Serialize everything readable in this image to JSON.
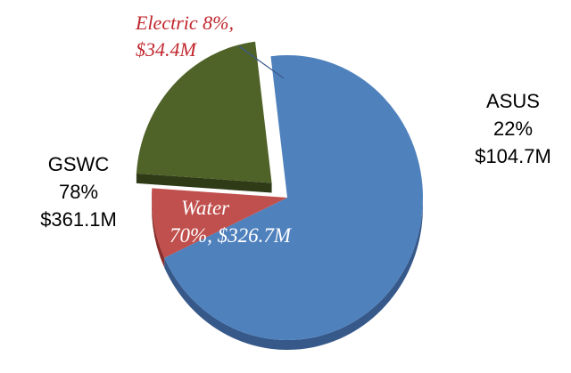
{
  "chart_data": {
    "type": "pie",
    "title": "",
    "slices": [
      {
        "label": "Water",
        "value": 70,
        "amount": "$326.7M",
        "color": "#4f81bd",
        "side_color": "#36598a"
      },
      {
        "label": "Electric",
        "value": 8,
        "amount": "$34.4M",
        "color": "#c0504d",
        "side_color": "#8a2e2c"
      },
      {
        "label": "ASUS",
        "value": 22,
        "amount": "$104.7M",
        "color": "#4f6228",
        "side_color": "#2f3b17",
        "exploded": true
      }
    ],
    "groups": [
      {
        "name": "GSWC",
        "value": 78,
        "amount": "$361.1M",
        "members": [
          "Water",
          "Electric"
        ]
      },
      {
        "name": "ASUS",
        "value": 22,
        "amount": "$104.7M",
        "members": [
          "ASUS"
        ]
      }
    ]
  },
  "labels": {
    "electric_line1": "Electric 8%,",
    "electric_line2": "$34.4M",
    "water_line1": "Water",
    "water_line2": "70%, $326.7M",
    "gswc_line1": "GSWC",
    "gswc_line2": "78%",
    "gswc_line3": "$361.1M",
    "asus_line1": "ASUS",
    "asus_line2": "22%",
    "asus_line3": "$104.7M"
  }
}
